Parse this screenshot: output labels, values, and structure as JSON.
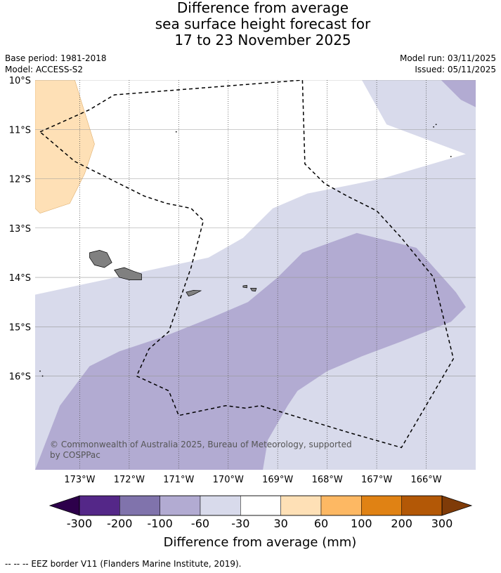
{
  "title": {
    "line1": "Difference from average",
    "line2": "sea surface height forecast for",
    "line3": "17 to 23 November 2025"
  },
  "meta": {
    "base_period": "Base period: 1981-2018",
    "model": "Model: ACCESS-S2",
    "model_run": "Model run: 03/11/2025",
    "issued": "Issued: 05/11/2025"
  },
  "map": {
    "lon_range": [
      -173.9,
      -165.0
    ],
    "lat_range": [
      -10.0,
      -17.9
    ],
    "lat_ticks": [
      {
        "value": -10,
        "label": "10°S"
      },
      {
        "value": -11,
        "label": "11°S"
      },
      {
        "value": -12,
        "label": "12°S"
      },
      {
        "value": -13,
        "label": "13°S"
      },
      {
        "value": -14,
        "label": "14°S"
      },
      {
        "value": -15,
        "label": "15°S"
      },
      {
        "value": -16,
        "label": "16°S"
      }
    ],
    "lon_ticks": [
      {
        "value": -173,
        "label": "173°W"
      },
      {
        "value": -172,
        "label": "172°W"
      },
      {
        "value": -171,
        "label": "171°W"
      },
      {
        "value": -170,
        "label": "170°W"
      },
      {
        "value": -169,
        "label": "169°W"
      },
      {
        "value": -168,
        "label": "168°W"
      },
      {
        "value": -167,
        "label": "167°W"
      },
      {
        "value": -166,
        "label": "166°W"
      }
    ],
    "regions": [
      {
        "name": "30-60 mm",
        "color": "#fee0b6",
        "lonlat": [
          [
            -173.9,
            -10.0
          ],
          [
            -173.1,
            -10.0
          ],
          [
            -172.7,
            -11.3
          ],
          [
            -172.9,
            -11.9
          ],
          [
            -173.2,
            -12.5
          ],
          [
            -173.8,
            -12.7
          ],
          [
            -173.9,
            -12.6
          ]
        ]
      },
      {
        "name": "-60 to -30 mm",
        "color": "#d8daeb",
        "lonlat": [
          [
            -173.9,
            -14.35
          ],
          [
            -170.4,
            -13.6
          ],
          [
            -169.7,
            -13.2
          ],
          [
            -169.1,
            -12.6
          ],
          [
            -168.4,
            -12.3
          ],
          [
            -166.9,
            -12.0
          ],
          [
            -165.2,
            -11.5
          ],
          [
            -166.8,
            -10.9
          ],
          [
            -167.3,
            -10.0
          ],
          [
            -165.0,
            -10.0
          ],
          [
            -165.0,
            -17.9
          ],
          [
            -173.9,
            -17.9
          ]
        ]
      },
      {
        "name": "-100 to -60 mm",
        "color": "#b2abd2",
        "lonlat": [
          [
            -173.9,
            -17.9
          ],
          [
            -173.4,
            -16.6
          ],
          [
            -172.8,
            -15.8
          ],
          [
            -172.2,
            -15.5
          ],
          [
            -171.3,
            -15.2
          ],
          [
            -170.3,
            -14.8
          ],
          [
            -169.6,
            -14.5
          ],
          [
            -169.0,
            -14.0
          ],
          [
            -168.5,
            -13.5
          ],
          [
            -167.4,
            -13.1
          ],
          [
            -166.2,
            -13.4
          ],
          [
            -165.4,
            -14.3
          ],
          [
            -165.2,
            -14.6
          ],
          [
            -165.5,
            -14.9
          ],
          [
            -166.5,
            -15.3
          ],
          [
            -167.3,
            -15.6
          ],
          [
            -168.0,
            -15.9
          ],
          [
            -168.6,
            -16.3
          ],
          [
            -168.8,
            -16.6
          ],
          [
            -169.2,
            -17.3
          ],
          [
            -169.3,
            -17.9
          ]
        ]
      },
      {
        "name": "-100 to -60 mm",
        "color": "#b2abd2",
        "lonlat": [
          [
            -165.7,
            -10.0
          ],
          [
            -165.0,
            -10.0
          ],
          [
            -165.0,
            -10.55
          ],
          [
            -165.3,
            -10.4
          ]
        ]
      }
    ],
    "islands": [
      {
        "name": "Savaii",
        "lonlat": [
          [
            -172.8,
            -13.5
          ],
          [
            -172.6,
            -13.45
          ],
          [
            -172.45,
            -13.5
          ],
          [
            -172.35,
            -13.7
          ],
          [
            -172.5,
            -13.8
          ],
          [
            -172.7,
            -13.75
          ],
          [
            -172.8,
            -13.6
          ]
        ]
      },
      {
        "name": "Upolu",
        "lonlat": [
          [
            -172.3,
            -13.85
          ],
          [
            -172.1,
            -13.8
          ],
          [
            -171.9,
            -13.88
          ],
          [
            -171.75,
            -13.93
          ],
          [
            -171.75,
            -14.05
          ],
          [
            -172.0,
            -14.05
          ],
          [
            -172.2,
            -14.0
          ]
        ]
      },
      {
        "name": "Tutuila",
        "lonlat": [
          [
            -170.85,
            -14.3
          ],
          [
            -170.7,
            -14.26
          ],
          [
            -170.55,
            -14.27
          ],
          [
            -170.7,
            -14.35
          ],
          [
            -170.8,
            -14.38
          ]
        ]
      },
      {
        "name": "Manua West",
        "lonlat": [
          [
            -169.7,
            -14.17
          ],
          [
            -169.62,
            -14.16
          ],
          [
            -169.62,
            -14.21
          ],
          [
            -169.7,
            -14.2
          ]
        ]
      },
      {
        "name": "Manua East",
        "lonlat": [
          [
            -169.55,
            -14.22
          ],
          [
            -169.43,
            -14.22
          ],
          [
            -169.45,
            -14.28
          ],
          [
            -169.52,
            -14.27
          ]
        ]
      }
    ],
    "dots": [
      {
        "lonlat": [
          -171.05,
          -11.05
        ]
      },
      {
        "lonlat": [
          -165.85,
          -10.95
        ]
      },
      {
        "lonlat": [
          -165.8,
          -10.9
        ]
      },
      {
        "lonlat": [
          -165.5,
          -11.55
        ]
      },
      {
        "lonlat": [
          -173.8,
          -15.9
        ]
      },
      {
        "lonlat": [
          -173.75,
          -16.0
        ]
      }
    ],
    "eez": [
      [
        [
          -173.8,
          -11.05
        ],
        [
          -172.8,
          -10.6
        ],
        [
          -172.3,
          -10.3
        ],
        [
          -168.5,
          -10.0
        ],
        [
          -168.45,
          -11.7
        ],
        [
          -168.05,
          -12.1
        ],
        [
          -167.6,
          -12.35
        ],
        [
          -167.0,
          -12.65
        ],
        [
          -166.5,
          -13.2
        ],
        [
          -165.85,
          -14.0
        ],
        [
          -165.45,
          -15.65
        ],
        [
          -166.5,
          -17.45
        ],
        [
          -167.55,
          -17.15
        ],
        [
          -169.35,
          -16.6
        ],
        [
          -169.65,
          -16.65
        ],
        [
          -170.05,
          -16.6
        ],
        [
          -171.0,
          -16.8
        ],
        [
          -171.2,
          -16.3
        ],
        [
          -171.85,
          -16.0
        ],
        [
          -171.6,
          -15.45
        ],
        [
          -171.2,
          -15.1
        ],
        [
          -170.75,
          -13.8
        ],
        [
          -170.5,
          -12.85
        ],
        [
          -170.75,
          -12.6
        ],
        [
          -171.0,
          -12.55
        ],
        [
          -171.25,
          -12.5
        ],
        [
          -171.7,
          -12.35
        ],
        [
          -172.4,
          -12.0
        ],
        [
          -173.1,
          -11.65
        ],
        [
          -173.8,
          -11.05
        ]
      ]
    ]
  },
  "colorbar": {
    "colors": [
      "#542788",
      "#8073ac",
      "#b2abd2",
      "#d8daeb",
      "#ffffff",
      "#fee0b6",
      "#fdb863",
      "#e08214",
      "#b35806"
    ],
    "extend_low": "#2d004b",
    "extend_high": "#7f3b08",
    "ticks": [
      "-300",
      "-200",
      "-100",
      "-60",
      "-30",
      "30",
      "60",
      "100",
      "200",
      "300"
    ],
    "label": "Difference from average (mm)"
  },
  "credit": "© Commonwealth of Australia 2025, Bureau of Meteorology, supported by COSPPac",
  "footer": "--  --  -- EEZ border V11 (Flanders Marine Institute, 2019)."
}
